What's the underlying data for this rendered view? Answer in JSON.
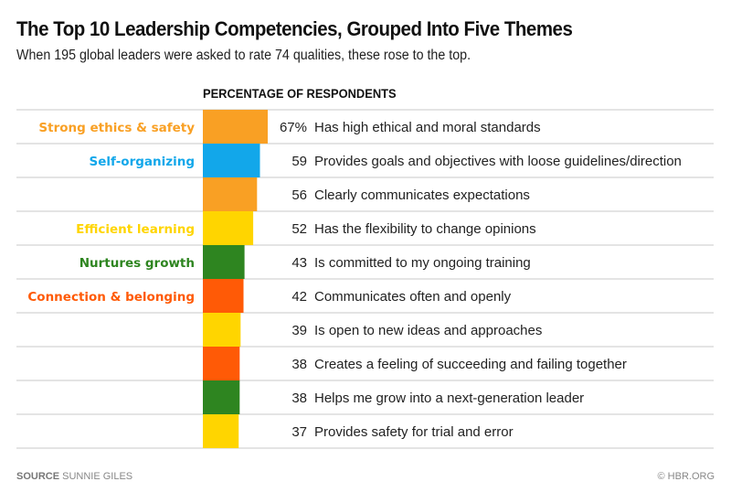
{
  "header": {
    "title": "The Top 10 Leadership Competencies, Grouped Into Five Themes",
    "subtitle": "When 195 global leaders were asked to rate 74 qualities, these rose to the top."
  },
  "footer": {
    "source_label": "SOURCE",
    "source_value": "SUNNIE GILES",
    "copyright": "© HBR.ORG"
  },
  "themes": {
    "ethics": {
      "label": "Strong ethics & safety",
      "color": "#F9A024"
    },
    "self": {
      "label": "Self-organizing",
      "color": "#12A7EA"
    },
    "learning": {
      "label": "Efficient learning",
      "color": "#FFD500"
    },
    "growth": {
      "label": "Nurtures growth",
      "color": "#2E8520"
    },
    "connection": {
      "label": "Connection & belonging",
      "color": "#FF5A06"
    }
  },
  "chart_data": {
    "type": "bar",
    "orientation": "horizontal",
    "title": "The Top 10 Leadership Competencies, Grouped Into Five Themes",
    "subtitle": "When 195 global leaders were asked to rate 74 qualities, these rose to the top.",
    "xlabel": "PERCENTAGE OF RESPONDENTS",
    "ylabel": "",
    "unit": "%",
    "xlim": [
      0,
      100
    ],
    "grid": false,
    "rows": [
      {
        "theme_label": "Strong ethics & safety",
        "theme": "ethics",
        "value": 67,
        "value_label": "67%",
        "category": "Has high ethical and moral standards"
      },
      {
        "theme_label": "Self-organizing",
        "theme": "self",
        "value": 59,
        "value_label": "59",
        "category": "Provides goals and objectives with loose guidelines/direction"
      },
      {
        "theme_label": "",
        "theme": "ethics",
        "value": 56,
        "value_label": "56",
        "category": "Clearly communicates expectations"
      },
      {
        "theme_label": "Efficient learning",
        "theme": "learning",
        "value": 52,
        "value_label": "52",
        "category": "Has the flexibility to change opinions"
      },
      {
        "theme_label": "Nurtures growth",
        "theme": "growth",
        "value": 43,
        "value_label": "43",
        "category": "Is committed to my ongoing training"
      },
      {
        "theme_label": "Connection & belonging",
        "theme": "connection",
        "value": 42,
        "value_label": "42",
        "category": "Communicates often and openly"
      },
      {
        "theme_label": "",
        "theme": "learning",
        "value": 39,
        "value_label": "39",
        "category": "Is open to new ideas and approaches"
      },
      {
        "theme_label": "",
        "theme": "connection",
        "value": 38,
        "value_label": "38",
        "category": "Creates a feeling of succeeding and failing together"
      },
      {
        "theme_label": "",
        "theme": "growth",
        "value": 38,
        "value_label": "38",
        "category": "Helps me grow into a next-generation leader"
      },
      {
        "theme_label": "",
        "theme": "learning",
        "value": 37,
        "value_label": "37",
        "category": "Provides safety for trial and error"
      }
    ]
  }
}
